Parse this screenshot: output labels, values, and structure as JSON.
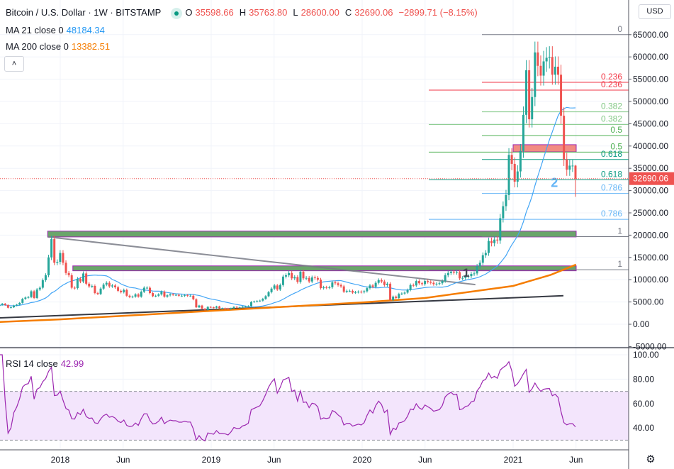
{
  "header": {
    "symbol": "Bitcoin / U.S. Dollar · 1W · BITSTAMP",
    "open_label": "O",
    "open": "35598.66",
    "high_label": "H",
    "high": "35763.80",
    "low_label": "L",
    "low": "28600.00",
    "close_label": "C",
    "close": "32690.06",
    "change": "−2899.71 (−8.15%)",
    "collapse_icon": "chevron-up-icon"
  },
  "indicators": {
    "ma21_label": "MA 21 close 0",
    "ma21_value": "48184.34",
    "ma200_label": "MA 200 close 0",
    "ma200_value": "13382.51",
    "rsi_label": "RSI 14 close",
    "rsi_value": "42.99"
  },
  "currency_selector": "USD",
  "settings_icon": "gear-icon",
  "colors": {
    "up": "#26a69a",
    "down": "#ef5350",
    "ma21": "#42a5f5",
    "ma200": "#f57c00",
    "rsi": "#9c27b0",
    "rsi_band": "#f3e5fc",
    "grid": "#f0f3fa",
    "fib_0": "#787b86",
    "fib_0236": "#f23645",
    "fib_0382": "#81c784",
    "fib_05": "#4caf50",
    "fib_0618": "#089981",
    "fib_0786": "#64b5f6",
    "fib_1": "#787b86",
    "zone_green": "#6aa56a",
    "zone_red": "#f28b82",
    "zone_border": "#9c27b0"
  },
  "chart_data": [
    {
      "type": "candlestick",
      "timeframe": "1W",
      "start_week": "2017-08",
      "end_week": "2021-06",
      "closes": [
        4100,
        4350,
        4600,
        4300,
        3700,
        3800,
        4200,
        4400,
        4800,
        5700,
        6000,
        6100,
        7400,
        5900,
        7800,
        8200,
        9900,
        11000,
        15000,
        19100,
        13800,
        14000,
        16000,
        13800,
        11500,
        11000,
        8200,
        8100,
        10200,
        9600,
        11400,
        9100,
        8500,
        8600,
        7000,
        6800,
        8000,
        8900,
        9300,
        8500,
        8700,
        8300,
        7500,
        7200,
        7700,
        6400,
        6100,
        6200,
        6700,
        6200,
        7300,
        8200,
        8200,
        7000,
        6300,
        6400,
        6700,
        7300,
        6200,
        6500,
        6700,
        6600,
        6600,
        6400,
        6400,
        6500,
        6400,
        6400,
        5600,
        3800,
        4200,
        3500,
        3200,
        3900,
        3800,
        3700,
        4000,
        3600,
        3600,
        3550,
        3400,
        3600,
        3900,
        3800,
        3800,
        3950,
        4000,
        4100,
        5000,
        5100,
        5200,
        5300,
        5700,
        6300,
        7200,
        8000,
        8700,
        7800,
        8800,
        10700,
        11000,
        11500,
        10300,
        10600,
        9500,
        11800,
        10300,
        10400,
        9600,
        10500,
        10400,
        10000,
        8100,
        8300,
        8200,
        8300,
        9400,
        9200,
        8800,
        8500,
        7300,
        7500,
        7500,
        7100,
        7200,
        7300,
        7200,
        7400,
        8100,
        8700,
        8400,
        9300,
        9900,
        9600,
        8800,
        9100,
        5400,
        6200,
        5900,
        6800,
        6900,
        7100,
        7700,
        8800,
        8700,
        9700,
        9200,
        9000,
        9700,
        9500,
        9300,
        9000,
        9100,
        9200,
        9700,
        11000,
        11500,
        11800,
        11600,
        11700,
        10300,
        10400,
        10700,
        10800,
        11300,
        11400,
        13000,
        13800,
        15500,
        16000,
        18700,
        18200,
        19000,
        18800,
        23800,
        26500,
        29000,
        38000,
        36000,
        32000,
        34300,
        38900,
        47000,
        57000,
        46000,
        51000,
        61000,
        58000,
        55800,
        59000,
        59800,
        60000,
        56000,
        57800,
        56000,
        46800,
        37000,
        34700,
        35600,
        35600,
        32690.06
      ],
      "last_candle": {
        "open": 35598.66,
        "high": 35763.8,
        "low": 28600.0,
        "close": 32690.06
      },
      "ma200": [
        {
          "date": "2017-08",
          "value": 500
        },
        {
          "date": "2018-01",
          "value": 1100
        },
        {
          "date": "2019-01",
          "value": 3000
        },
        {
          "date": "2020-01",
          "value": 4900
        },
        {
          "date": "2020-06",
          "value": 5900
        },
        {
          "date": "2021-01",
          "value": 8600
        },
        {
          "date": "2021-04",
          "value": 11100
        },
        {
          "date": "2021-06",
          "value": 13382.51
        }
      ],
      "y_axis": {
        "range": [
          -5000,
          70000
        ],
        "ticks": [
          "65000.00",
          "60000.00",
          "55000.00",
          "50000.00",
          "45000.00",
          "40000.00",
          "35000.00",
          "30000.00",
          "25000.00",
          "20000.00",
          "15000.00",
          "10000.00",
          "5000.00",
          "0.00",
          "-5000.00"
        ],
        "tick_values": [
          65000,
          60000,
          55000,
          50000,
          45000,
          40000,
          35000,
          30000,
          25000,
          20000,
          15000,
          10000,
          5000,
          0,
          -5000
        ]
      },
      "x_axis": {
        "ticks": [
          "2018",
          "Jun",
          "2019",
          "Jun",
          "2020",
          "Jun",
          "2021",
          "Jun"
        ],
        "tick_dates": [
          "2018-01",
          "2018-06",
          "2019-01",
          "2019-06",
          "2020-01",
          "2020-06",
          "2021-01",
          "2021-06"
        ]
      },
      "current_price_label": "32690.06",
      "fib_retracements": [
        {
          "from": "2020-12",
          "high": 65000,
          "low": 12250,
          "levels": [
            {
              "ratio": "0.236",
              "price": 52550
            },
            {
              "ratio": "0.382",
              "price": 44850
            },
            {
              "ratio": "0.5",
              "price": 38625
            },
            {
              "ratio": "0.618",
              "price": 32400
            },
            {
              "ratio": "0.786",
              "price": 23540
            },
            {
              "ratio": "1",
              "price": 12250
            }
          ]
        },
        {
          "from": "2021-01",
          "high": 65000,
          "low": 19660,
          "levels": [
            {
              "ratio": "0",
              "price": 65000
            },
            {
              "ratio": "0.236",
              "price": 54300
            },
            {
              "ratio": "0.382",
              "price": 47680
            },
            {
              "ratio": "0.5",
              "price": 42330
            },
            {
              "ratio": "0.618",
              "price": 36980
            },
            {
              "ratio": "0.786",
              "price": 29360
            },
            {
              "ratio": "1",
              "price": 19660
            }
          ]
        }
      ],
      "zones": [
        {
          "from": "2017-12",
          "to": "2021-06",
          "top": 20900,
          "bottom": 19600,
          "color": "green"
        },
        {
          "from": "2018-02",
          "to": "2021-06",
          "top": 13100,
          "bottom": 12000,
          "color": "green"
        },
        {
          "from": "2021-01",
          "to": "2021-06",
          "top": 40300,
          "bottom": 38700,
          "color": "red"
        }
      ],
      "trendlines": [
        {
          "from": {
            "date": "2017-12",
            "price": 19600
          },
          "to": {
            "date": "2020-10",
            "price": 8900
          },
          "color": "#787b86"
        },
        {
          "from": {
            "date": "2017-08",
            "price": 1400
          },
          "to": {
            "date": "2021-05",
            "price": 6400
          },
          "color": "#131722"
        }
      ],
      "annotations": [
        {
          "text": "1",
          "date": "2020-09",
          "price": 10700
        },
        {
          "text": "2",
          "date": "2021-04",
          "price": 30800
        }
      ]
    },
    {
      "type": "line",
      "name": "RSI 14 close",
      "y_axis": {
        "range": [
          20,
          100
        ],
        "ticks": [
          "100.00",
          "80.00",
          "60.00",
          "40.00"
        ],
        "tick_values": [
          100,
          80,
          60,
          40
        ]
      },
      "bands": {
        "upper": 70,
        "lower": 30
      },
      "last_value": 42.99
    }
  ]
}
